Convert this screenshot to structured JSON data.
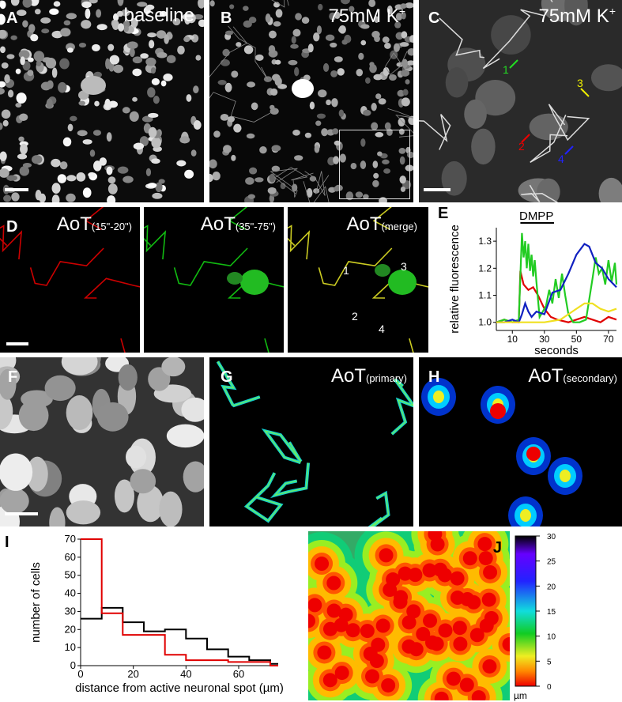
{
  "panels": {
    "A": {
      "label": "A",
      "title": "baseline"
    },
    "B": {
      "label": "B",
      "title": "75mM K",
      "sup": "+"
    },
    "C": {
      "label": "C",
      "title": "75mM K",
      "sup": "+",
      "arrows": [
        "1",
        "2",
        "3",
        "4"
      ]
    },
    "D": {
      "label": "D",
      "sub1": {
        "main": "AoT",
        "sub": "(15\"-20\")"
      },
      "sub2": {
        "main": "AoT",
        "sub": "(35\"-75\")"
      },
      "sub3": {
        "main": "AoT",
        "sub": "(merge)"
      },
      "arrows": [
        "1",
        "2",
        "3",
        "4"
      ]
    },
    "E": {
      "label": "E"
    },
    "F": {
      "label": "F"
    },
    "G": {
      "label": "G",
      "main": "AoT",
      "sub": "(primary)"
    },
    "H": {
      "label": "H",
      "main": "AoT",
      "sub": "(secondary)"
    },
    "I": {
      "label": "I"
    },
    "J": {
      "label": "J"
    }
  },
  "colors": {
    "red": "#e00000",
    "green": "#22cc22",
    "blue": "#1020c0",
    "yellow": "#f0e020",
    "black": "#000000"
  },
  "chart_data": [
    {
      "type": "line",
      "panel": "E",
      "annotation": "DMPP",
      "xlabel": "seconds",
      "ylabel": "relative fluorescence",
      "xlim": [
        0,
        75
      ],
      "ylim": [
        0.97,
        1.35
      ],
      "xticks": [
        10,
        30,
        50,
        70
      ],
      "yticks": [
        1.0,
        1.1,
        1.2,
        1.3
      ],
      "series": [
        {
          "color": "red",
          "x": [
            0,
            5,
            10,
            14,
            15,
            17,
            20,
            23,
            26,
            30,
            34,
            38,
            45,
            55,
            60,
            65,
            70,
            75
          ],
          "y": [
            1.0,
            1.01,
            1.0,
            1.0,
            1.19,
            1.14,
            1.12,
            1.13,
            1.1,
            1.05,
            1.02,
            1.01,
            1.0,
            1.02,
            1.01,
            1.0,
            1.02,
            1.01
          ]
        },
        {
          "color": "green",
          "x": [
            0,
            5,
            10,
            14,
            16,
            17,
            18,
            19,
            20,
            21,
            22,
            23,
            24,
            25,
            27,
            29,
            31,
            33,
            35,
            37,
            39,
            41,
            43,
            45,
            48,
            52,
            56,
            60,
            62,
            64,
            66,
            68,
            70,
            72,
            74,
            75
          ],
          "y": [
            1.0,
            1.01,
            1.0,
            1.01,
            1.33,
            1.24,
            1.3,
            1.2,
            1.29,
            1.19,
            1.25,
            1.17,
            1.23,
            1.15,
            1.02,
            1.04,
            1.06,
            1.12,
            1.07,
            1.16,
            1.09,
            1.18,
            1.1,
            1.03,
            1.0,
            1.0,
            1.01,
            1.16,
            1.24,
            1.18,
            1.2,
            1.14,
            1.23,
            1.15,
            1.22,
            1.14
          ]
        },
        {
          "color": "blue",
          "x": [
            0,
            5,
            10,
            14,
            16,
            18,
            20,
            22,
            25,
            30,
            35,
            40,
            45,
            50,
            55,
            58,
            62,
            66,
            70,
            75
          ],
          "y": [
            1.0,
            1.0,
            1.01,
            1.0,
            1.03,
            1.07,
            1.04,
            1.02,
            1.04,
            1.03,
            1.11,
            1.12,
            1.18,
            1.25,
            1.29,
            1.28,
            1.22,
            1.2,
            1.16,
            1.13
          ]
        },
        {
          "color": "yellow",
          "x": [
            0,
            10,
            20,
            30,
            40,
            45,
            50,
            55,
            60,
            65,
            70,
            75
          ],
          "y": [
            1.0,
            1.0,
            1.0,
            1.0,
            1.01,
            1.03,
            1.05,
            1.07,
            1.07,
            1.05,
            1.04,
            1.05
          ]
        }
      ]
    },
    {
      "type": "line",
      "panel": "I",
      "xlabel": "distance from active neuronal spot (µm)",
      "ylabel": "number of cells",
      "xlim": [
        0,
        75
      ],
      "ylim": [
        0,
        70
      ],
      "xticks": [
        0,
        20,
        40,
        60
      ],
      "yticks": [
        0,
        10,
        20,
        30,
        40,
        50,
        60,
        70
      ],
      "series": [
        {
          "color": "black",
          "x": [
            0,
            8,
            16,
            24,
            32,
            40,
            48,
            56,
            64,
            72
          ],
          "y": [
            26,
            32,
            24,
            19,
            20,
            15,
            9,
            5,
            3,
            1
          ]
        },
        {
          "color": "red",
          "x": [
            0,
            8,
            16,
            24,
            32,
            40,
            48,
            56,
            64,
            72
          ],
          "y": [
            70,
            29,
            17,
            17,
            6,
            3,
            3,
            2,
            2,
            0
          ]
        }
      ]
    }
  ],
  "colorbar": {
    "ticks": [
      "30",
      "25",
      "20",
      "15",
      "10",
      "5",
      "0"
    ],
    "unit": "µm"
  }
}
